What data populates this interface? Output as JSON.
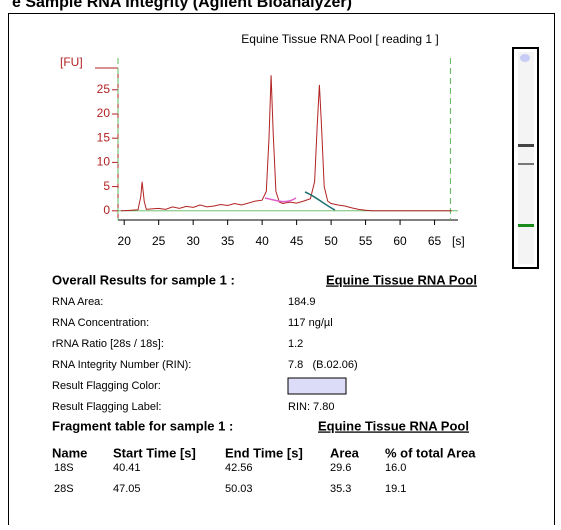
{
  "header": {
    "title": "e Sample RNA Integrity (Agilent Bioanalyzer)"
  },
  "chart_data": {
    "type": "line",
    "title": "Equine Tissue RNA Pool  [ reading 1 ]",
    "y_label": "[FU]",
    "x_label": "[s]",
    "x": [
      19.5,
      21,
      22,
      22.4,
      22.6,
      22.9,
      23.2,
      24,
      25,
      26,
      27,
      28,
      29,
      30,
      31,
      32,
      33,
      34,
      35,
      36,
      37,
      38,
      39,
      40,
      40.6,
      41.0,
      41.3,
      41.6,
      42.0,
      42.5,
      43,
      44,
      45,
      46,
      47,
      47.6,
      48.0,
      48.3,
      48.6,
      49.0,
      49.5,
      50,
      51,
      52,
      53,
      54,
      55,
      56,
      60,
      65,
      67.5
    ],
    "series": [
      {
        "name": "Equine Tissue RNA Pool",
        "color": "#b22222",
        "values": [
          0,
          0.1,
          0.2,
          3,
          6,
          2,
          0.3,
          0.4,
          0.5,
          0.3,
          0.8,
          0.5,
          0.9,
          0.7,
          1.2,
          0.8,
          1.0,
          1.3,
          1.1,
          1.5,
          1.2,
          1.6,
          2.0,
          2.2,
          4,
          15,
          28,
          16,
          4,
          1.8,
          1.5,
          1.8,
          1.6,
          2.0,
          2.5,
          6,
          18,
          26,
          18,
          5,
          2,
          1.5,
          1.2,
          1.0,
          0.6,
          0.3,
          0.1,
          0,
          0,
          0,
          0
        ]
      }
    ],
    "xlim": [
      19.1,
      68.4
    ],
    "ylim": [
      -1.9,
      29.5
    ],
    "xticks": [
      20,
      25,
      30,
      35,
      40,
      45,
      50,
      55,
      60,
      65
    ],
    "yticks": [
      0,
      5,
      10,
      15,
      20,
      25
    ],
    "markers": [
      19.1,
      67.3
    ],
    "marker_color": "#5cb85c"
  },
  "results": {
    "title": "Overall Results for sample 1 :",
    "sample": "Equine Tissue RNA Pool",
    "rows": [
      [
        "RNA Area:",
        "184.9"
      ],
      [
        "RNA Concentration:",
        "117 ng/µl"
      ],
      [
        "rRNA Ratio [28s / 18s]:",
        "1.2"
      ],
      [
        "RNA Integrity Number (RIN):",
        "7.8   (B.02.06)"
      ],
      [
        "Result Flagging Color:",
        ""
      ],
      [
        "Result Flagging Label:",
        "RIN: 7.80"
      ]
    ],
    "flag_color": "#dcdcf8"
  },
  "fragment_table": {
    "title": "Fragment table for sample 1 :",
    "sample": "Equine Tissue RNA Pool",
    "columns": [
      "Name",
      "Start Time [s]",
      "End Time [s]",
      "Area",
      "% of total Area"
    ],
    "rows": [
      [
        "18S",
        "40.41",
        "42.56",
        "29.6",
        "16.0"
      ],
      [
        "28S",
        "47.05",
        "50.03",
        "35.3",
        "19.1"
      ]
    ]
  }
}
